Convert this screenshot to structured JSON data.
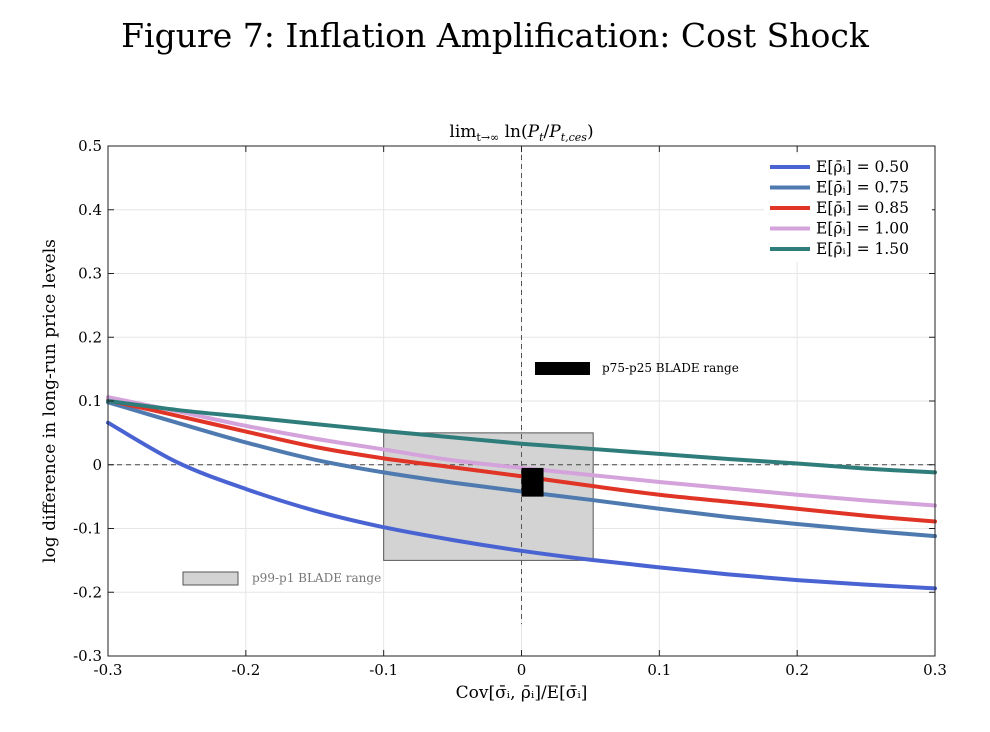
{
  "figure_title": "Figure 7: Inflation Amplification: Cost Shock",
  "chart_data": {
    "type": "line",
    "title_parts": [
      "lim",
      "t→∞",
      " ln(",
      "P",
      "t",
      "/",
      "P",
      "t,ces",
      ")"
    ],
    "xlabel": "Cov[σ̄ᵢ, ρ̄ᵢ]/E[σ̄ᵢ]",
    "ylabel": "log difference in long-run price levels",
    "xlim": [
      -0.3,
      0.3
    ],
    "ylim": [
      -0.3,
      0.5
    ],
    "xticks": [
      -0.3,
      -0.2,
      -0.1,
      0,
      0.1,
      0.2,
      0.3
    ],
    "xtick_labels": [
      "-0.3",
      "-0.2",
      "-0.1",
      "0",
      "0.1",
      "0.2",
      "0.3"
    ],
    "yticks": [
      -0.3,
      -0.2,
      -0.1,
      0,
      0.1,
      0.2,
      0.3,
      0.4,
      0.5
    ],
    "ytick_labels": [
      "-0.3",
      "-0.2",
      "-0.1",
      "0",
      "0.1",
      "0.2",
      "0.3",
      "0.4",
      "0.5"
    ],
    "grid": true,
    "legend_position": "top-right",
    "x": [
      -0.3,
      -0.25,
      -0.2,
      -0.15,
      -0.1,
      -0.05,
      0,
      0.05,
      0.1,
      0.15,
      0.2,
      0.25,
      0.3
    ],
    "series": [
      {
        "name_prefix": "E[ρ̄ᵢ] = ",
        "value": "0.50",
        "color": "#4a63d3",
        "values": [
          0.066,
          0.004,
          -0.038,
          -0.072,
          -0.098,
          -0.118,
          -0.135,
          -0.149,
          -0.161,
          -0.172,
          -0.181,
          -0.188,
          -0.194
        ]
      },
      {
        "name_prefix": "E[ρ̄ᵢ] = ",
        "value": "0.75",
        "color": "#4f7ab0",
        "values": [
          0.098,
          0.066,
          0.035,
          0.008,
          -0.012,
          -0.028,
          -0.042,
          -0.055,
          -0.069,
          -0.082,
          -0.093,
          -0.103,
          -0.112
        ]
      },
      {
        "name_prefix": "E[ρ̄ᵢ] = ",
        "value": "0.85",
        "color": "#e03526",
        "values": [
          0.101,
          0.077,
          0.052,
          0.028,
          0.01,
          -0.004,
          -0.018,
          -0.033,
          -0.047,
          -0.058,
          -0.069,
          -0.08,
          -0.089
        ]
      },
      {
        "name_prefix": "E[ρ̄ᵢ] = ",
        "value": "1.00",
        "color": "#d4a3db",
        "values": [
          0.106,
          0.084,
          0.061,
          0.041,
          0.024,
          0.007,
          -0.005,
          -0.016,
          -0.027,
          -0.037,
          -0.047,
          -0.056,
          -0.064
        ]
      },
      {
        "name_prefix": "E[ρ̄ᵢ] = ",
        "value": "1.50",
        "color": "#2f7d7b",
        "values": [
          0.1,
          0.086,
          0.075,
          0.064,
          0.053,
          0.043,
          0.033,
          0.025,
          0.017,
          0.009,
          0.002,
          -0.006,
          -0.012
        ]
      }
    ],
    "vertical_reference_x": 0,
    "horizontal_reference_y": 0,
    "shaded_ranges": [
      {
        "label": "p99-p1 BLADE range",
        "x": [
          -0.1,
          0.052
        ],
        "y": [
          -0.15,
          0.05
        ],
        "fill": "#d3d3d3"
      },
      {
        "label": "p75-p25 BLADE range",
        "x": [
          0,
          0.016
        ],
        "y": [
          -0.05,
          -0.005
        ],
        "fill": "#000000"
      }
    ]
  }
}
